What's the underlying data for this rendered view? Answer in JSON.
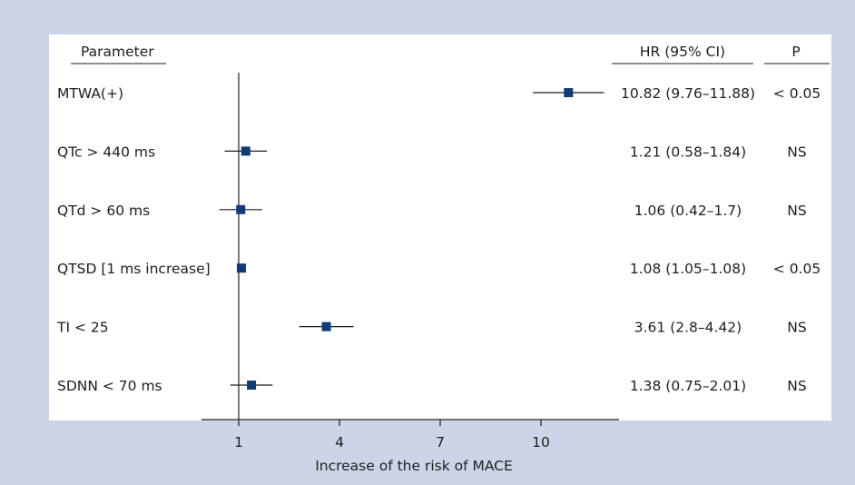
{
  "headers": {
    "parameter": "Parameter",
    "hr": "HR (95% CI)",
    "p": "P"
  },
  "xlabel": "Increase of the risk of MACE",
  "colors": {
    "marker": "#0d3c78",
    "axis": "#1e1e1e",
    "frame": "#ccd5e8",
    "panel": "#ffffff"
  },
  "chart_data": {
    "type": "forest",
    "reference_line": 1,
    "xlim": [
      0,
      12
    ],
    "xticks": [
      1,
      4,
      7,
      10
    ],
    "xtick_labels": [
      "1",
      "4",
      "7",
      "10"
    ],
    "rows": [
      {
        "label": "MTWA(+)",
        "hr": 10.82,
        "ci_low": 9.76,
        "ci_high": 11.88,
        "hr_text": "10.82 (9.76–11.88)",
        "p": "< 0.05"
      },
      {
        "label": "QTc > 440 ms",
        "hr": 1.21,
        "ci_low": 0.58,
        "ci_high": 1.84,
        "hr_text": "1.21 (0.58–1.84)",
        "p": "NS"
      },
      {
        "label": "QTd > 60 ms",
        "hr": 1.06,
        "ci_low": 0.42,
        "ci_high": 1.7,
        "hr_text": "1.06 (0.42–1.7)",
        "p": "NS"
      },
      {
        "label": "QTSD [1 ms increase]",
        "hr": 1.08,
        "ci_low": 1.05,
        "ci_high": 1.08,
        "hr_text": "1.08 (1.05–1.08)",
        "p": "< 0.05"
      },
      {
        "label": "TI < 25",
        "hr": 3.61,
        "ci_low": 2.8,
        "ci_high": 4.42,
        "hr_text": "3.61 (2.8–4.42)",
        "p": "NS"
      },
      {
        "label": "SDNN < 70 ms",
        "hr": 1.38,
        "ci_low": 0.75,
        "ci_high": 2.01,
        "hr_text": "1.38 (0.75–2.01)",
        "p": "NS"
      }
    ]
  }
}
